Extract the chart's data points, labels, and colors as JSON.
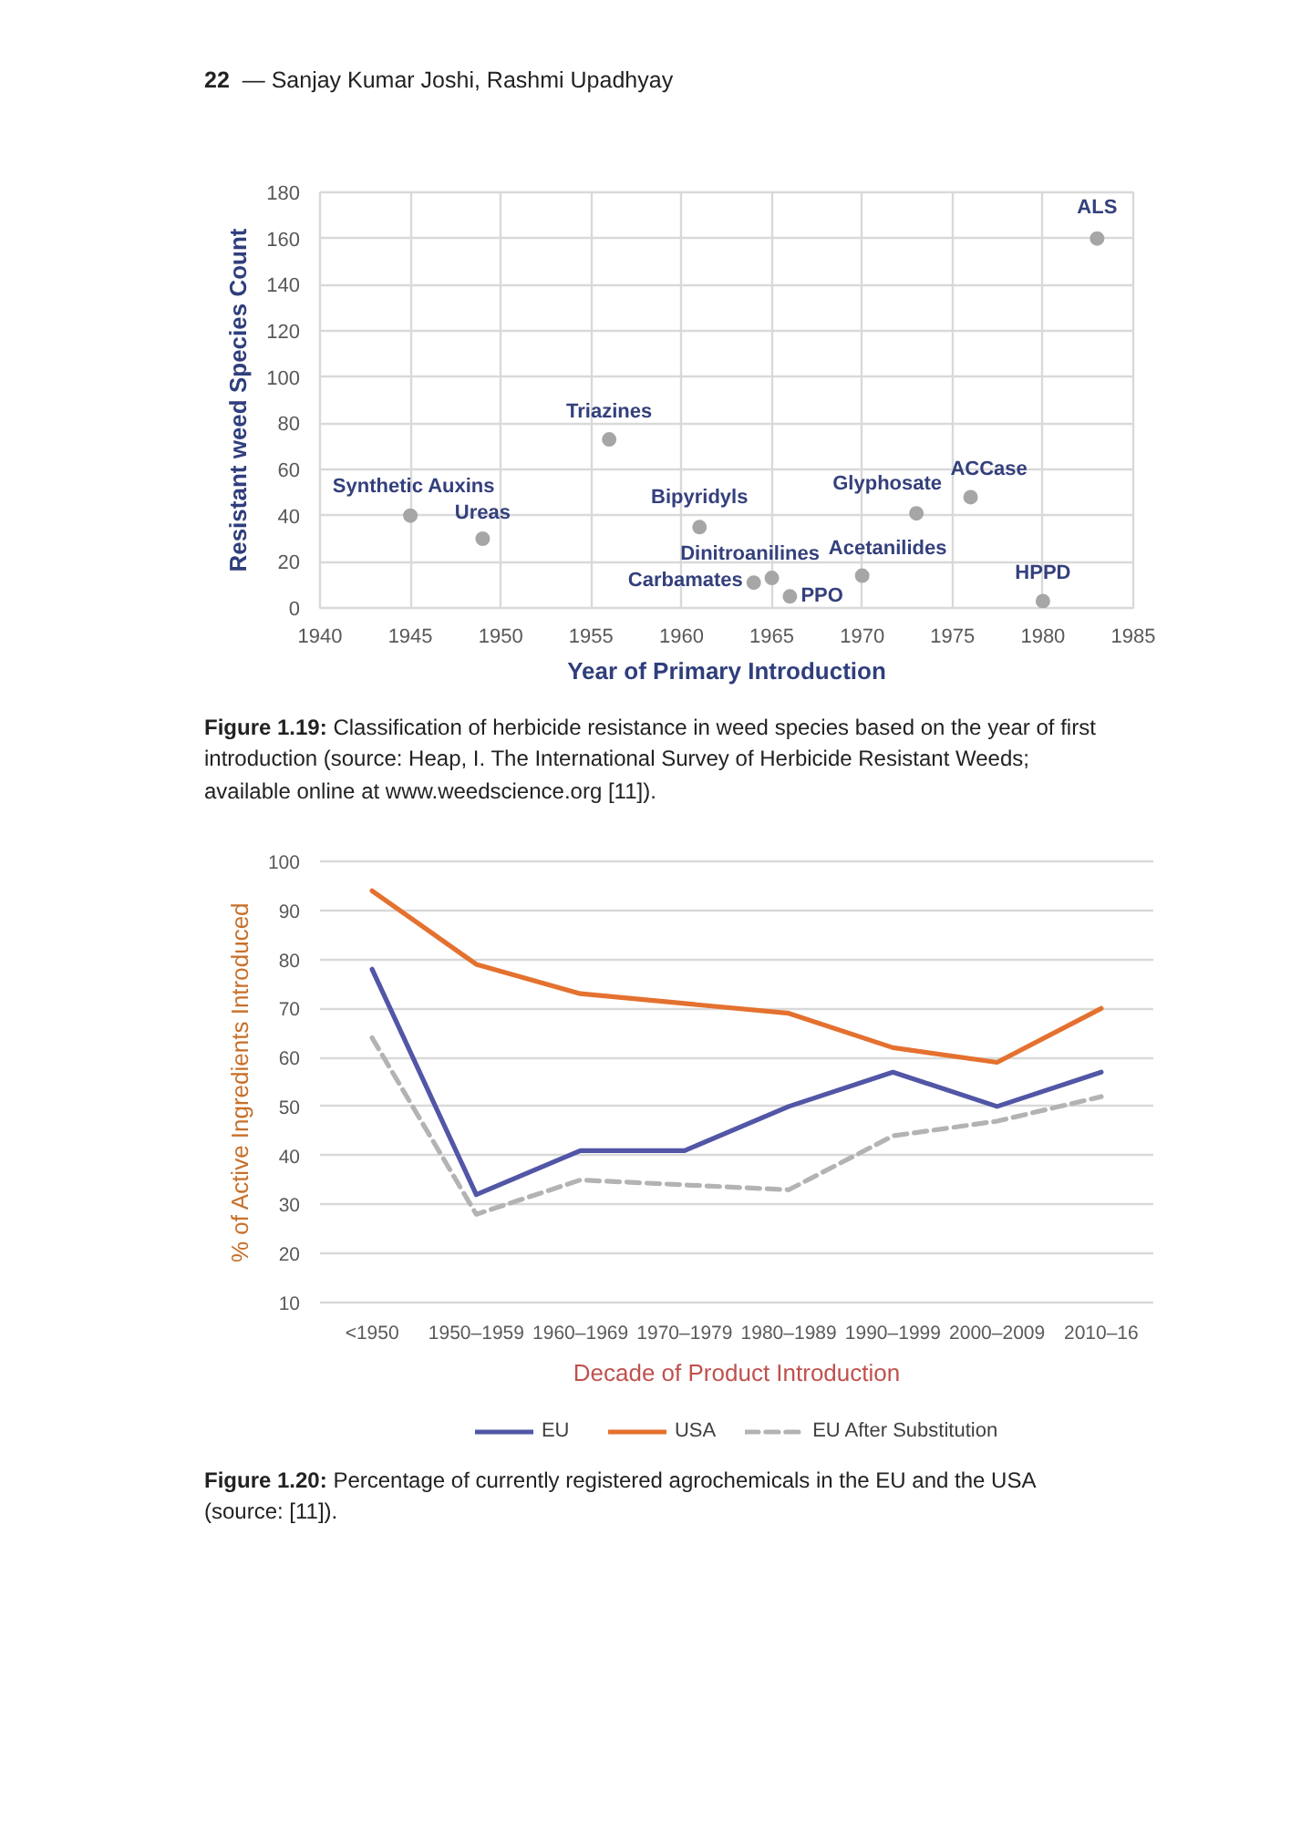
{
  "chart_data": [
    {
      "type": "scatter",
      "annotations": [
        "22 — Sanjay Kumar Joshi, Rashmi Upadhyay",
        {
          "text": "Synthetic Auxins",
          "x": 1945,
          "y": 40
        },
        {
          "text": "Ureas",
          "x": 1949,
          "y": 30
        },
        {
          "text": "Triazines",
          "x": 1956,
          "y": 73
        },
        {
          "text": "Bipyridyls",
          "x": 1961,
          "y": 35
        },
        {
          "text": "Carbamates",
          "x": 1964,
          "y": 11
        },
        {
          "text": "Dinitroanilines",
          "x": 1965,
          "y": 13
        },
        {
          "text": "PPO",
          "x": 1966,
          "y": 5
        },
        {
          "text": "Acetanilides",
          "x": 1970,
          "y": 14
        },
        {
          "text": "Glyphosate",
          "x": 1973,
          "y": 41
        },
        {
          "text": "ACCase",
          "x": 1976,
          "y": 48
        },
        {
          "text": "HPPD",
          "x": 1980,
          "y": 3
        },
        {
          "text": "ALS",
          "x": 1983,
          "y": 160
        },
        "Figure 1.19: Classification of herbicide resistance in weed species based on the year of first introduction (source: Heap, I. The International Survey of Herbicide Resistant Weeds; available online at www.weedscience.org [11])."
      ],
      "x": [
        1945,
        1949,
        1956,
        1961,
        1964,
        1965,
        1966,
        1970,
        1973,
        1976,
        1980,
        1983
      ],
      "values": [
        40,
        30,
        73,
        35,
        11,
        13,
        5,
        14,
        41,
        48,
        3,
        160
      ],
      "color": "#a6a6a6",
      "marker": "circle",
      "xlabel": "Year of Primary Introduction",
      "ylabel": "Resistant weed Species Count",
      "xlim": [
        1940,
        1985
      ],
      "xticks": [
        1940,
        1945,
        1950,
        1955,
        1960,
        1965,
        1970,
        1975,
        1980,
        1985
      ],
      "ylim": [
        0,
        180
      ],
      "yticks": [
        0,
        20,
        40,
        60,
        80,
        100,
        120,
        140,
        160,
        180
      ],
      "grid": true
    },
    {
      "type": "line",
      "categories": [
        "<1950",
        "1950–1959",
        "1960–1969",
        "1970–1979",
        "1980–1989",
        "1990–1999",
        "2000–2009",
        "2010–16"
      ],
      "series": [
        {
          "name": "EU",
          "color": "#5156a6",
          "values": [
            78,
            32,
            41,
            41,
            50,
            57,
            50,
            57
          ]
        },
        {
          "name": "USA",
          "color": "#e4712f",
          "values": [
            94,
            79,
            73,
            71,
            69,
            62,
            59,
            70
          ]
        },
        {
          "name": "EU After Substitution",
          "color": "#b3b3b3",
          "values": [
            64,
            28,
            35,
            34,
            33,
            44,
            47,
            52
          ],
          "line_style": "dashed"
        }
      ],
      "xlabel": "Decade of Product Introduction",
      "ylabel": "% of Active Ingredients Introduced",
      "ylim": [
        10,
        100
      ],
      "yticks": [
        10,
        20,
        30,
        40,
        50,
        60,
        70,
        80,
        90,
        100
      ],
      "grid": "y",
      "legend": "bottom",
      "annotations": [
        "Figure 1.20: Percentage of currently registered agrochemicals in the EU and the USA (source: [11])."
      ]
    }
  ]
}
